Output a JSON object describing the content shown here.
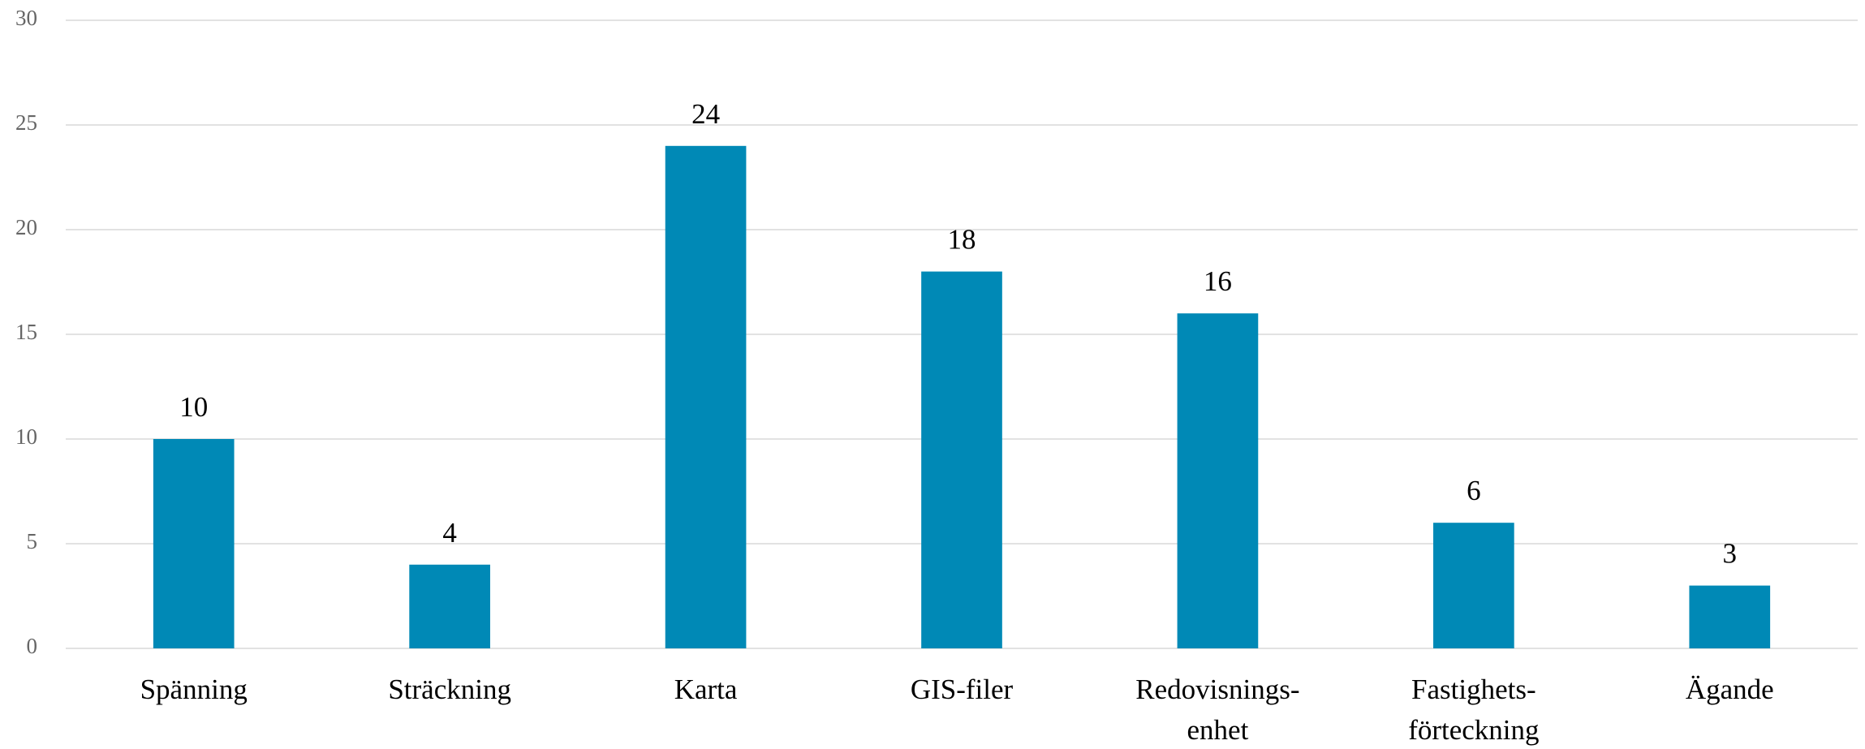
{
  "chart_data": {
    "type": "bar",
    "categories": [
      "Spänning",
      "Sträckning",
      "Karta",
      "GIS-filer",
      "Redovisnings-\nenhet",
      "Fastighets-\nförteckning",
      "Ägande"
    ],
    "values": [
      10,
      4,
      24,
      18,
      16,
      6,
      3
    ],
    "color": "#0089b6",
    "ylim": [
      0,
      30
    ],
    "yticks": [
      0,
      5,
      10,
      15,
      20,
      25,
      30
    ],
    "grid": true
  }
}
